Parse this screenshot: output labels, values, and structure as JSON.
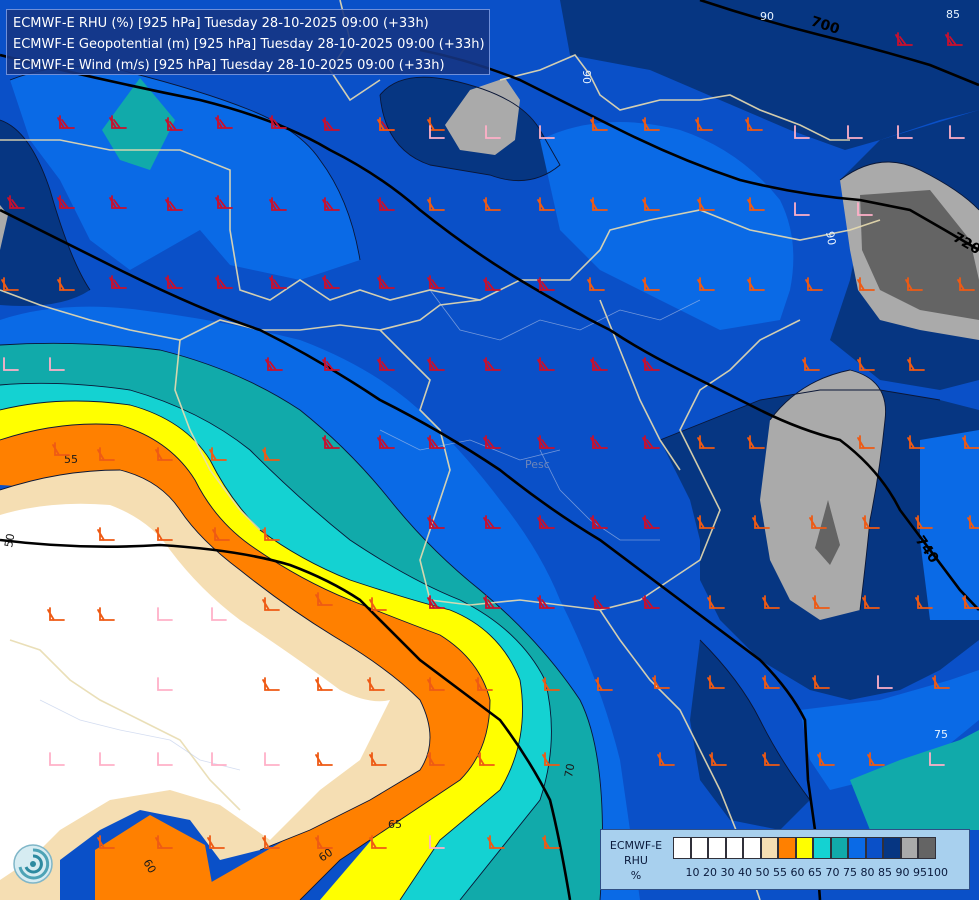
{
  "title_lines": [
    "ECMWF-E RHU (%) [925 hPa] Tuesday 28-10-2025 09:00 (+33h)",
    "ECMWF-E Geopotential (m) [925 hPa] Tuesday 28-10-2025 09:00 (+33h)",
    "ECMWF-E Wind (m/s) [925 hPa] Tuesday 28-10-2025 09:00 (+33h)"
  ],
  "legend": {
    "model": "ECMWF-E",
    "variable": "RHU",
    "unit": "%",
    "colors": [
      "#ffffff",
      "#ffffff",
      "#ffffff",
      "#ffffff",
      "#ffffff",
      "#f5deb3",
      "#ff8000",
      "#ffff00",
      "#14d2d2",
      "#11aaaa",
      "#0a6ae6",
      "#0a50c8",
      "#063682",
      "#aaaaaa",
      "#646464"
    ],
    "ticks": [
      "10",
      "20",
      "30",
      "40",
      "50",
      "55",
      "60",
      "65",
      "70",
      "75",
      "80",
      "85",
      "90",
      "95",
      "100"
    ]
  },
  "contour_labels": {
    "geopotential": [
      "700",
      "720",
      "740"
    ],
    "humidity": [
      "55",
      "50",
      "60",
      "60",
      "65",
      "70",
      "75",
      "85",
      "90",
      "90",
      "90"
    ],
    "place": "Pesc"
  },
  "colors": {
    "very_humid": "#063682",
    "humid": "#0a50c8",
    "moist": "#0a6ae6",
    "gray95": "#aaaaaa",
    "gray100": "#646464",
    "teal75": "#11aaaa",
    "cyan70": "#14d2d2",
    "yellow65": "#ffff00",
    "orange60": "#ff8000",
    "tan55": "#f5deb3",
    "dry": "#ffffff",
    "barb_red": "#c8102e",
    "barb_orange": "#ee5a14",
    "barb_pink": "#ffb0c8",
    "border": "#e8dcb0"
  },
  "wind_barbs": {
    "red": [
      [
        60,
        128
      ],
      [
        112,
        128
      ],
      [
        168,
        130
      ],
      [
        218,
        128
      ],
      [
        272,
        128
      ],
      [
        325,
        130
      ],
      [
        380,
        130
      ],
      [
        10,
        208
      ],
      [
        60,
        208
      ],
      [
        112,
        208
      ],
      [
        168,
        210
      ],
      [
        218,
        208
      ],
      [
        272,
        210
      ],
      [
        325,
        210
      ],
      [
        380,
        210
      ],
      [
        112,
        288
      ],
      [
        168,
        288
      ],
      [
        218,
        288
      ],
      [
        272,
        288
      ],
      [
        325,
        288
      ],
      [
        380,
        288
      ],
      [
        430,
        288
      ],
      [
        486,
        290
      ],
      [
        540,
        290
      ],
      [
        268,
        370
      ],
      [
        325,
        370
      ],
      [
        380,
        370
      ],
      [
        430,
        370
      ],
      [
        486,
        370
      ],
      [
        540,
        370
      ],
      [
        593,
        370
      ],
      [
        645,
        370
      ],
      [
        325,
        448
      ],
      [
        380,
        448
      ],
      [
        430,
        448
      ],
      [
        486,
        448
      ],
      [
        540,
        448
      ],
      [
        593,
        448
      ],
      [
        645,
        448
      ],
      [
        430,
        528
      ],
      [
        486,
        528
      ],
      [
        540,
        528
      ],
      [
        593,
        528
      ],
      [
        645,
        528
      ],
      [
        430,
        608
      ],
      [
        486,
        608
      ],
      [
        540,
        608
      ],
      [
        595,
        608
      ],
      [
        645,
        608
      ],
      [
        898,
        45
      ],
      [
        948,
        45
      ]
    ],
    "orange": [
      [
        430,
        210
      ],
      [
        486,
        210
      ],
      [
        540,
        210
      ],
      [
        593,
        210
      ],
      [
        645,
        210
      ],
      [
        700,
        210
      ],
      [
        750,
        210
      ],
      [
        590,
        290
      ],
      [
        645,
        290
      ],
      [
        700,
        290
      ],
      [
        750,
        290
      ],
      [
        808,
        290
      ],
      [
        860,
        290
      ],
      [
        908,
        290
      ],
      [
        960,
        290
      ],
      [
        805,
        370
      ],
      [
        860,
        370
      ],
      [
        910,
        370
      ],
      [
        860,
        448
      ],
      [
        910,
        448
      ],
      [
        965,
        448
      ],
      [
        700,
        448
      ],
      [
        750,
        448
      ],
      [
        700,
        528
      ],
      [
        755,
        528
      ],
      [
        812,
        528
      ],
      [
        865,
        528
      ],
      [
        918,
        528
      ],
      [
        970,
        528
      ],
      [
        710,
        608
      ],
      [
        765,
        608
      ],
      [
        815,
        608
      ],
      [
        865,
        608
      ],
      [
        918,
        608
      ],
      [
        965,
        608
      ],
      [
        655,
        688
      ],
      [
        710,
        688
      ],
      [
        765,
        688
      ],
      [
        815,
        688
      ],
      [
        935,
        688
      ],
      [
        660,
        765
      ],
      [
        712,
        765
      ],
      [
        765,
        765
      ],
      [
        820,
        765
      ],
      [
        870,
        765
      ],
      [
        55,
        455
      ],
      [
        100,
        460
      ],
      [
        158,
        460
      ],
      [
        212,
        460
      ],
      [
        265,
        460
      ],
      [
        215,
        540
      ],
      [
        158,
        540
      ],
      [
        100,
        540
      ],
      [
        265,
        540
      ],
      [
        318,
        605
      ],
      [
        265,
        610
      ],
      [
        372,
        610
      ],
      [
        430,
        690
      ],
      [
        478,
        690
      ],
      [
        545,
        690
      ],
      [
        598,
        690
      ],
      [
        265,
        690
      ],
      [
        318,
        690
      ],
      [
        370,
        690
      ],
      [
        318,
        765
      ],
      [
        372,
        765
      ],
      [
        430,
        765
      ],
      [
        480,
        765
      ],
      [
        545,
        765
      ],
      [
        100,
        620
      ],
      [
        50,
        620
      ],
      [
        372,
        848
      ],
      [
        490,
        848
      ],
      [
        545,
        848
      ],
      [
        100,
        848
      ],
      [
        158,
        848
      ],
      [
        210,
        848
      ],
      [
        265,
        848
      ],
      [
        318,
        848
      ],
      [
        4,
        290
      ],
      [
        60,
        290
      ],
      [
        380,
        130
      ],
      [
        430,
        130
      ],
      [
        593,
        130
      ],
      [
        645,
        130
      ],
      [
        698,
        130
      ],
      [
        748,
        130
      ]
    ],
    "pink": [
      [
        430,
        138
      ],
      [
        486,
        138
      ],
      [
        540,
        138
      ],
      [
        795,
        138
      ],
      [
        848,
        138
      ],
      [
        898,
        138
      ],
      [
        950,
        138
      ],
      [
        795,
        215
      ],
      [
        858,
        215
      ],
      [
        158,
        620
      ],
      [
        212,
        620
      ],
      [
        158,
        690
      ],
      [
        50,
        765
      ],
      [
        100,
        765
      ],
      [
        158,
        765
      ],
      [
        212,
        765
      ],
      [
        265,
        765
      ],
      [
        430,
        848
      ],
      [
        878,
        688
      ],
      [
        930,
        765
      ],
      [
        900,
        848
      ],
      [
        4,
        370
      ],
      [
        50,
        370
      ]
    ]
  }
}
